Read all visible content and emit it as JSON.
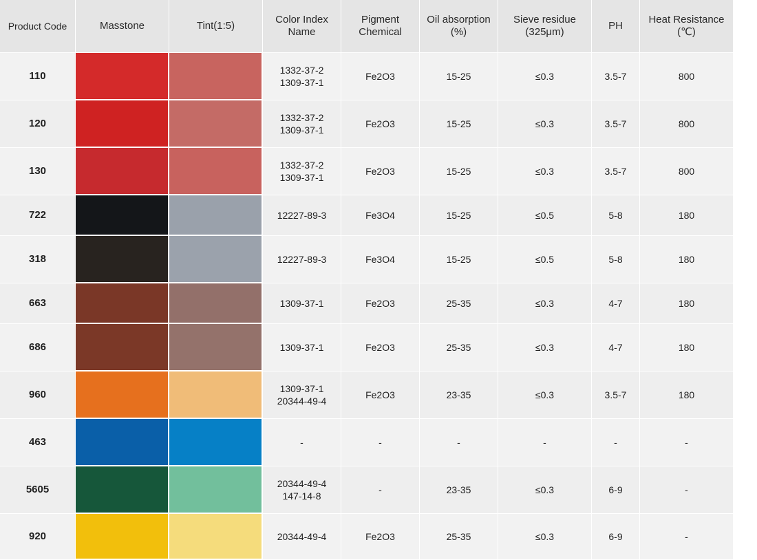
{
  "table": {
    "headers": [
      "Product Code",
      "Masstone",
      "Tint(1:5)",
      "Color Index\nName",
      "Pigment\nChemical",
      "Oil absorption\n(%)",
      "Sieve residue\n(325μm)",
      "PH",
      "Heat Resistance\n(℃)"
    ],
    "rows": [
      {
        "code": "110",
        "masstone": "#d42a2a",
        "tint": "#c8645f",
        "ci": "1332-37-2\n1309-37-1",
        "chem": "Fe2O3",
        "oil": "15-25",
        "sieve": "≤0.3",
        "ph": "3.5-7",
        "heat": "800"
      },
      {
        "code": "120",
        "masstone": "#cf2222",
        "tint": "#c46b66",
        "ci": "1332-37-2\n1309-37-1",
        "chem": "Fe2O3",
        "oil": "15-25",
        "sieve": "≤0.3",
        "ph": "3.5-7",
        "heat": "800"
      },
      {
        "code": "130",
        "masstone": "#c62a2e",
        "tint": "#c8625e",
        "ci": "1332-37-2\n1309-37-1",
        "chem": "Fe2O3",
        "oil": "15-25",
        "sieve": "≤0.3",
        "ph": "3.5-7",
        "heat": "800"
      },
      {
        "code": "722",
        "masstone": "#141619",
        "tint": "#9aa1ab",
        "ci": "12227-89-3",
        "chem": "Fe3O4",
        "oil": "15-25",
        "sieve": "≤0.5",
        "ph": "5-8",
        "heat": "180"
      },
      {
        "code": "318",
        "masstone": "#28231f",
        "tint": "#9ba2ac",
        "ci": "12227-89-3",
        "chem": "Fe3O4",
        "oil": "15-25",
        "sieve": "≤0.5",
        "ph": "5-8",
        "heat": "180"
      },
      {
        "code": "663",
        "masstone": "#7a3727",
        "tint": "#93706a",
        "ci": "1309-37-1",
        "chem": "Fe2O3",
        "oil": "25-35",
        "sieve": "≤0.3",
        "ph": "4-7",
        "heat": "180"
      },
      {
        "code": "686",
        "masstone": "#7b3827",
        "tint": "#94726b",
        "ci": "1309-37-1",
        "chem": "Fe2O3",
        "oil": "25-35",
        "sieve": "≤0.3",
        "ph": "4-7",
        "heat": "180"
      },
      {
        "code": "960",
        "masstone": "#e6701e",
        "tint": "#f0bc78",
        "ci": "1309-37-1\n20344-49-4",
        "chem": "Fe2O3",
        "oil": "23-35",
        "sieve": "≤0.3",
        "ph": "3.5-7",
        "heat": "180"
      },
      {
        "code": "463",
        "masstone": "#0a5fa8",
        "tint": "#0680c6",
        "ci": "-",
        "chem": "-",
        "oil": "-",
        "sieve": "-",
        "ph": "-",
        "heat": "-"
      },
      {
        "code": "5605",
        "masstone": "#16573a",
        "tint": "#72bf9c",
        "ci": "20344-49-4\n147-14-8",
        "chem": "-",
        "oil": "23-35",
        "sieve": "≤0.3",
        "ph": "6-9",
        "heat": "-"
      },
      {
        "code": "920",
        "masstone": "#f2bf0c",
        "tint": "#f5dc7c",
        "ci": "20344-49-4",
        "chem": "Fe2O3",
        "oil": "25-35",
        "sieve": "≤0.3",
        "ph": "6-9",
        "heat": "-"
      }
    ]
  }
}
